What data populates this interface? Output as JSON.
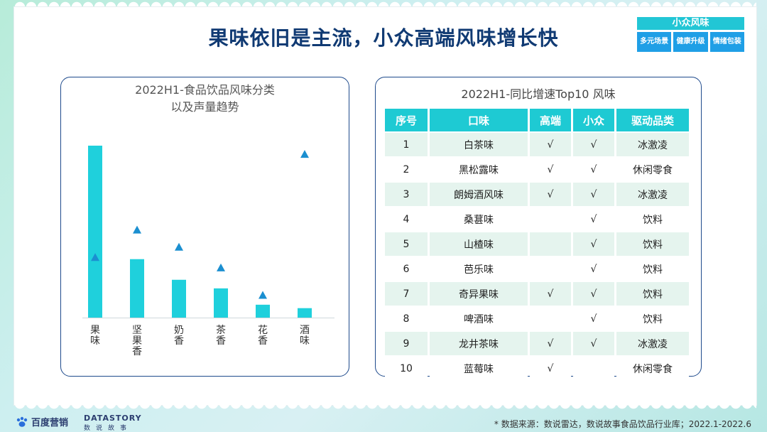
{
  "title": "果味依旧是主流，小众高端风味增长快",
  "tag": {
    "head": "小众风味",
    "items": [
      "多元场景",
      "健康升级",
      "情绪包装"
    ]
  },
  "chart_data": {
    "type": "bar",
    "title_line1": "2022H1-食品饮品风味分类",
    "title_line2": "以及声量趋势",
    "categories": [
      "果味",
      "坚果香",
      "奶香",
      "茶香",
      "花香",
      "酒味"
    ],
    "values": [
      100,
      34,
      22,
      17,
      7.5,
      5.5
    ],
    "trend": [
      35,
      51,
      41,
      29,
      13,
      95
    ],
    "ylim": [
      0,
      100
    ],
    "colors": {
      "bar": "#1fd0dc",
      "marker": "#1b8fd0"
    }
  },
  "table": {
    "title": "2022H1-同比增速Top10 风味",
    "headers": [
      "序号",
      "口味",
      "高端",
      "小众",
      "驱动品类"
    ],
    "rows": [
      [
        "1",
        "白茶味",
        "√",
        "√",
        "冰激凌"
      ],
      [
        "2",
        "黑松露味",
        "√",
        "√",
        "休闲零食"
      ],
      [
        "3",
        "朗姆酒风味",
        "√",
        "√",
        "冰激凌"
      ],
      [
        "4",
        "桑葚味",
        "",
        "√",
        "饮料"
      ],
      [
        "5",
        "山楂味",
        "",
        "√",
        "饮料"
      ],
      [
        "6",
        "芭乐味",
        "",
        "√",
        "饮料"
      ],
      [
        "7",
        "奇异果味",
        "√",
        "√",
        "饮料"
      ],
      [
        "8",
        "啤酒味",
        "",
        "√",
        "饮料"
      ],
      [
        "9",
        "龙井茶味",
        "√",
        "√",
        "冰激凌"
      ],
      [
        "10",
        "蓝莓味",
        "√",
        "",
        "休闲零食"
      ]
    ]
  },
  "footer": {
    "baidu": "百度营销",
    "datastory": "DATASTORY",
    "datastory_sub": "数说故事",
    "source": "* 数据来源：数说雷达，数说故事食品饮品行业库；2022.1-2022.6"
  }
}
